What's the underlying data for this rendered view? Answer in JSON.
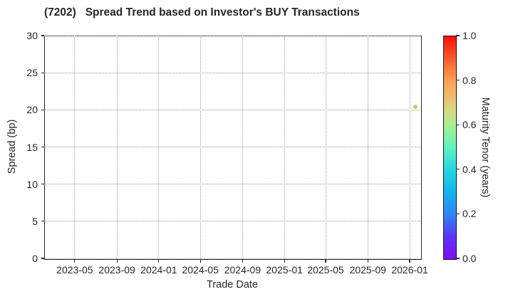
{
  "page": {
    "title": "(7202)   Spread Trend based on Investor's BUY Transactions"
  },
  "chart_data": {
    "type": "scatter",
    "title": "(7202)   Spread Trend based on Investor's BUY Transactions",
    "xlabel": "Trade Date",
    "ylabel": "Spread (bp)",
    "grid": "dotted",
    "legend": "colorbar-right",
    "x_axis": {
      "range": [
        "2023-02-01",
        "2026-02-01"
      ],
      "tick_labels": [
        "2023-05",
        "2023-09",
        "2024-01",
        "2024-05",
        "2024-09",
        "2025-01",
        "2025-05",
        "2025-09",
        "2026-01"
      ]
    },
    "y_axis": {
      "range": [
        0,
        30
      ],
      "ticks": [
        0,
        5,
        10,
        15,
        20,
        25,
        30
      ]
    },
    "points": [
      {
        "date": "2026-01-17",
        "spread_bp": 20.4,
        "maturity_tenor_years": 0.65,
        "color": "#d3c462"
      }
    ],
    "colorbar": {
      "label": "Maturity Tenor (years)",
      "range": [
        0.0,
        1.0
      ],
      "tick_labels": [
        "0.0",
        "0.2",
        "0.4",
        "0.6",
        "0.8",
        "1.0"
      ],
      "gradient_stops": [
        {
          "pos": 0.0,
          "color": "#7f0ef4"
        },
        {
          "pos": 0.1,
          "color": "#5b35f6"
        },
        {
          "pos": 0.2,
          "color": "#2e86f7"
        },
        {
          "pos": 0.3,
          "color": "#14b3ed"
        },
        {
          "pos": 0.4,
          "color": "#25d6df"
        },
        {
          "pos": 0.5,
          "color": "#5ef3c0"
        },
        {
          "pos": 0.6,
          "color": "#a5f18f"
        },
        {
          "pos": 0.67,
          "color": "#d9d884"
        },
        {
          "pos": 0.75,
          "color": "#f4b367"
        },
        {
          "pos": 0.8,
          "color": "#f9a155"
        },
        {
          "pos": 0.9,
          "color": "#f65c2d"
        },
        {
          "pos": 1.0,
          "color": "#fa0e0a"
        }
      ]
    },
    "style": {
      "spine_color": "#262626",
      "grid_color": "#9a9a9a",
      "background": "#ffffff",
      "text_color": "#262626"
    }
  }
}
